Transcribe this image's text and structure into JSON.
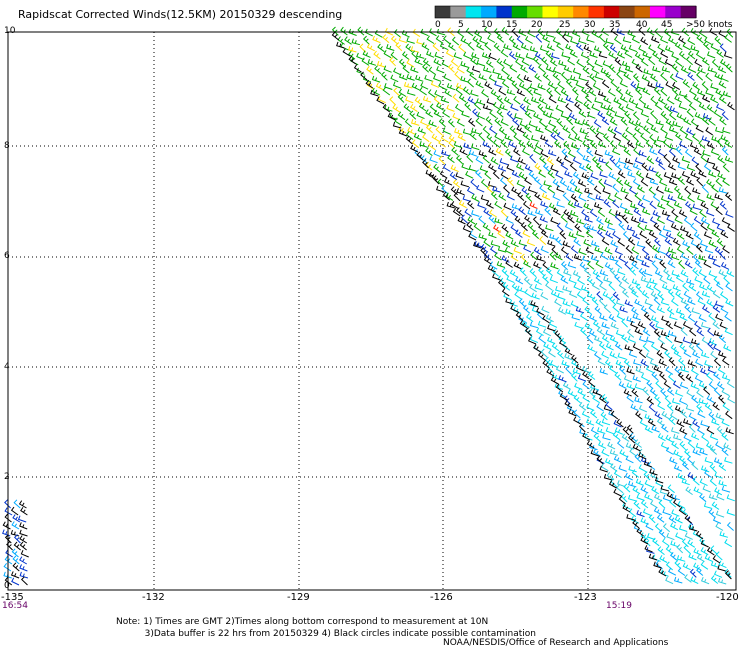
{
  "title": "Rapidscat Corrected Winds(12.5KM) 20150329 descending",
  "color_scale": {
    "labels": [
      "0",
      "5",
      "10",
      "15",
      "20",
      "25",
      "30",
      "35",
      "40",
      "45",
      ">50 knots"
    ],
    "colors": [
      "#3a3a3a",
      "#9a9a9a",
      "#00e6f0",
      "#00aaff",
      "#0033cc",
      "#00aa00",
      "#66dd00",
      "#ffff00",
      "#ffcc00",
      "#ff8800",
      "#ff3300",
      "#cc0000",
      "#8b4513",
      "#cc6600",
      "#ff00ff",
      "#9900cc",
      "#660066"
    ]
  },
  "axes": {
    "y_ticks": [
      "10",
      "8",
      "6",
      "4",
      "2",
      "0"
    ],
    "x_ticks": [
      "-135",
      "-132",
      "-129",
      "-126",
      "-123",
      "-120"
    ]
  },
  "times": {
    "left": "16:54",
    "right": "15:19"
  },
  "notes": {
    "line1": "Note: 1) Times are GMT 2)Times along bottom correspond to measurement at 10N",
    "line2": "          3)Data buffer is 22 hrs from 20150329 4) Black circles indicate possible contamination"
  },
  "credit": "NOAA/NESDIS/Office of Research and Applications"
}
